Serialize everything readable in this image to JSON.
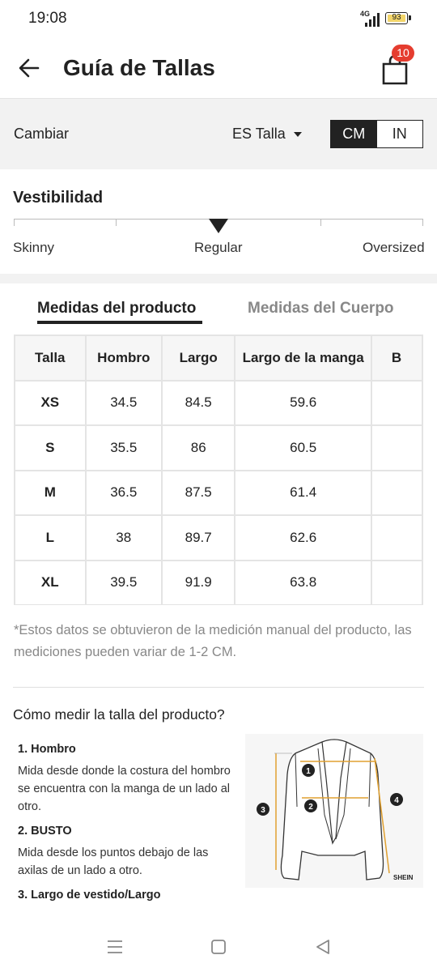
{
  "status_bar": {
    "time": "19:08",
    "network": "4G",
    "battery": "93",
    "battery_color": "#f2d56a"
  },
  "header": {
    "title": "Guía de Tallas",
    "back_icon": "back-arrow-icon",
    "bag_icon": "shopping-bag-icon",
    "bag_count": "10",
    "badge_color": "#e53d2f"
  },
  "settings": {
    "cambiar_label": "Cambiar",
    "size_system": "ES Talla",
    "units": [
      "CM",
      "IN"
    ],
    "active_unit": "CM"
  },
  "fit": {
    "title": "Vestibilidad",
    "labels": [
      "Skinny",
      "Regular",
      "Oversized"
    ],
    "selected": "Regular"
  },
  "tabs": {
    "items": [
      "Medidas del producto",
      "Medidas del Cuerpo"
    ],
    "active": "Medidas del producto"
  },
  "size_table": {
    "headers": [
      "Talla",
      "Hombro",
      "Largo",
      "Largo de la manga",
      "B"
    ],
    "rows": [
      [
        "XS",
        "34.5",
        "84.5",
        "59.6",
        ""
      ],
      [
        "S",
        "35.5",
        "86",
        "60.5",
        ""
      ],
      [
        "M",
        "36.5",
        "87.5",
        "61.4",
        ""
      ],
      [
        "L",
        "38",
        "89.7",
        "62.6",
        ""
      ],
      [
        "XL",
        "39.5",
        "91.9",
        "63.8",
        ""
      ]
    ]
  },
  "note": "*Estos datos se obtuvieron de la medición manual del producto, las mediciones pueden variar de 1-2 CM.",
  "how_to": {
    "title": "Cómo medir la talla del producto?",
    "items": [
      {
        "heading": "1. Hombro",
        "text": "Mida desde donde la costura del hombro se encuentra con la manga de un lado al otro."
      },
      {
        "heading": "2. BUSTO",
        "text": "Mida desde los puntos debajo de las axilas de un lado a otro."
      },
      {
        "heading": "3. Largo de vestido/Largo",
        "text": ""
      }
    ],
    "diagram": {
      "markers": [
        "1",
        "2",
        "3",
        "4"
      ],
      "brand": "SHEIN",
      "guide_color": "#e0a030"
    }
  },
  "nav_bar": {
    "icons": [
      "menu-icon",
      "home-icon",
      "back-triangle-icon"
    ]
  }
}
